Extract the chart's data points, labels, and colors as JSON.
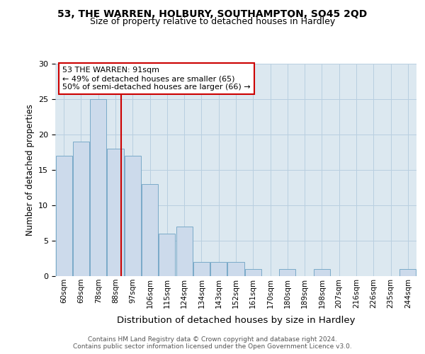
{
  "title1": "53, THE WARREN, HOLBURY, SOUTHAMPTON, SO45 2QD",
  "title2": "Size of property relative to detached houses in Hardley",
  "xlabel": "Distribution of detached houses by size in Hardley",
  "ylabel": "Number of detached properties",
  "categories": [
    "60sqm",
    "69sqm",
    "78sqm",
    "88sqm",
    "97sqm",
    "106sqm",
    "115sqm",
    "124sqm",
    "134sqm",
    "143sqm",
    "152sqm",
    "161sqm",
    "170sqm",
    "180sqm",
    "189sqm",
    "198sqm",
    "207sqm",
    "216sqm",
    "226sqm",
    "235sqm",
    "244sqm"
  ],
  "values": [
    17,
    19,
    25,
    18,
    17,
    13,
    6,
    7,
    2,
    2,
    2,
    1,
    0,
    1,
    0,
    1,
    0,
    0,
    0,
    0,
    1
  ],
  "bar_color": "#ccdaeb",
  "bar_edge_color": "#7aaac8",
  "annotation_text": "53 THE WARREN: 91sqm\n← 49% of detached houses are smaller (65)\n50% of semi-detached houses are larger (66) →",
  "annotation_box_color": "#ffffff",
  "annotation_box_edge_color": "#cc0000",
  "ylim": [
    0,
    30
  ],
  "yticks": [
    0,
    5,
    10,
    15,
    20,
    25,
    30
  ],
  "grid_color": "#b8cfe0",
  "background_color": "#dce8f0",
  "footer1": "Contains HM Land Registry data © Crown copyright and database right 2024.",
  "footer2": "Contains public sector information licensed under the Open Government Licence v3.0."
}
